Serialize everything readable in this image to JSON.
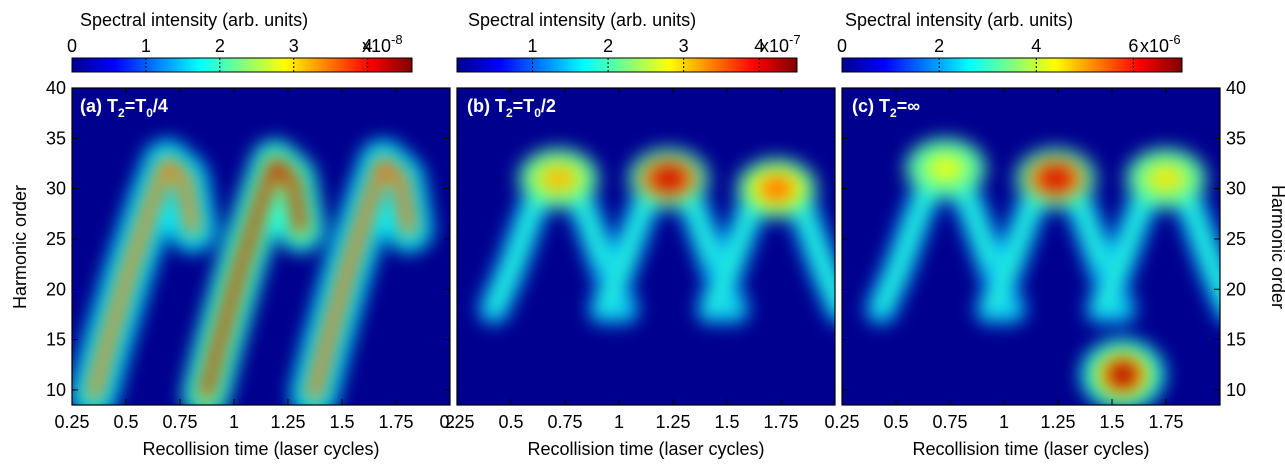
{
  "chart_data": [
    {
      "type": "heatmap",
      "panel_label": "(a) T",
      "panel_sub": "2",
      "panel_rest": "=T",
      "panel_sub2": "0",
      "panel_tail": "/4",
      "xlabel": "Recollision time (laser cycles)",
      "ylabel": "Harmonic order",
      "xlim": [
        0.25,
        2.0
      ],
      "ylim": [
        8.5,
        40
      ],
      "xticks": [
        "0.25",
        "0.5",
        "0.75",
        "1",
        "1.25",
        "1.5",
        "1.75",
        "2"
      ],
      "yticks": [
        "10",
        "15",
        "20",
        "25",
        "30",
        "35",
        "40"
      ],
      "colorbar": {
        "label": "Spectral intensity (arb. units)",
        "ticks": [
          "0",
          "1",
          "2",
          "3",
          "4"
        ],
        "tick_values": [
          0,
          1,
          2,
          3,
          4
        ],
        "max": 4.6,
        "exponent_base": "x10",
        "exponent": "-8"
      },
      "colormap": "jet",
      "features": [
        {
          "kind": "rising-ridge",
          "x_start": 0.35,
          "x_end": 0.72,
          "peak_intensity": 0.78
        },
        {
          "kind": "rising-ridge",
          "x_start": 0.87,
          "x_end": 1.22,
          "peak_intensity": 0.95
        },
        {
          "kind": "rising-ridge",
          "x_start": 1.37,
          "x_end": 1.72,
          "peak_intensity": 0.8
        }
      ]
    },
    {
      "type": "heatmap",
      "panel_label": "(b) T",
      "panel_sub": "2",
      "panel_rest": "=T",
      "panel_sub2": "0",
      "panel_tail": "/2",
      "xlabel": "Recollision time (laser cycles)",
      "ylabel": "",
      "xlim": [
        0.25,
        2.0
      ],
      "ylim": [
        8.5,
        40
      ],
      "xticks": [
        "0.25",
        "0.5",
        "0.75",
        "1",
        "1.25",
        "1.5",
        "1.75"
      ],
      "yticks": [],
      "colorbar": {
        "label": "Spectral intensity (arb. units)",
        "ticks": [
          "1",
          "2",
          "3",
          "4"
        ],
        "tick_values": [
          1,
          2,
          3,
          4
        ],
        "max": 4.5,
        "exponent_base": "x10",
        "exponent": "-7"
      },
      "colormap": "jet",
      "features": [
        {
          "kind": "arch",
          "x_center": 0.72,
          "peak_order": 31,
          "peak_intensity": 0.7
        },
        {
          "kind": "arch",
          "x_center": 1.23,
          "peak_order": 31,
          "peak_intensity": 0.93
        },
        {
          "kind": "arch",
          "x_center": 1.73,
          "peak_order": 30,
          "peak_intensity": 0.78
        }
      ]
    },
    {
      "type": "heatmap",
      "panel_label": "(c) T",
      "panel_sub": "2",
      "panel_rest": "=∞",
      "panel_sub2": "",
      "panel_tail": "",
      "xlabel": "Recollision time (laser cycles)",
      "ylabel": "Harmonic order",
      "xlim": [
        0.25,
        2.0
      ],
      "ylim": [
        8.5,
        40
      ],
      "xticks": [
        "0.25",
        "0.5",
        "0.75",
        "1",
        "1.25",
        "1.5",
        "1.75"
      ],
      "yticks": [
        "10",
        "15",
        "20",
        "25",
        "30",
        "35",
        "40"
      ],
      "colorbar": {
        "label": "Spectral intensity (arb. units)",
        "ticks": [
          "0",
          "2",
          "4",
          "6"
        ],
        "tick_values": [
          0,
          2,
          4,
          6
        ],
        "max": 7.0,
        "exponent_base": "x10",
        "exponent": "-6"
      },
      "colormap": "jet",
      "features": [
        {
          "kind": "arch",
          "x_center": 0.73,
          "peak_order": 32,
          "peak_intensity": 0.62
        },
        {
          "kind": "arch",
          "x_center": 1.24,
          "peak_order": 31,
          "peak_intensity": 0.92
        },
        {
          "kind": "arch",
          "x_center": 1.75,
          "peak_order": 31,
          "peak_intensity": 0.65
        },
        {
          "kind": "spot",
          "x_center": 1.55,
          "peak_order": 11.5,
          "peak_intensity": 0.95
        }
      ]
    }
  ]
}
